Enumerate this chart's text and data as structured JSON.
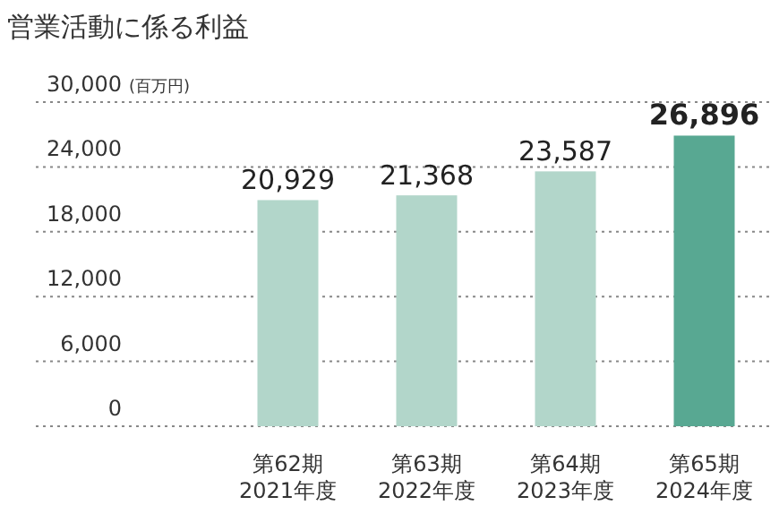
{
  "chart_data": {
    "type": "bar",
    "title": "営業活動に係る利益",
    "ylabel": "(百万円)",
    "categories": [
      "第62期\n2021年度",
      "第63期\n2022年度",
      "第64期\n2023年度",
      "第65期\n2024年度"
    ],
    "values": [
      20929,
      21368,
      23587,
      26896
    ],
    "colors": [
      "#b2d6ca",
      "#b2d6ca",
      "#b2d6ca",
      "#58a892"
    ],
    "ylim": [
      0,
      30000
    ],
    "yticks": [
      {
        "value": 0,
        "label": "0"
      },
      {
        "value": 6000,
        "label": "6,000"
      },
      {
        "value": 12000,
        "label": "12,000"
      },
      {
        "value": 18000,
        "label": "18,000"
      },
      {
        "value": 24000,
        "label": "24,000"
      },
      {
        "value": 30000,
        "label": "30,000"
      }
    ],
    "value_labels": [
      "20,929",
      "21,368",
      "23,587",
      "26,896"
    ],
    "grid": "y"
  }
}
